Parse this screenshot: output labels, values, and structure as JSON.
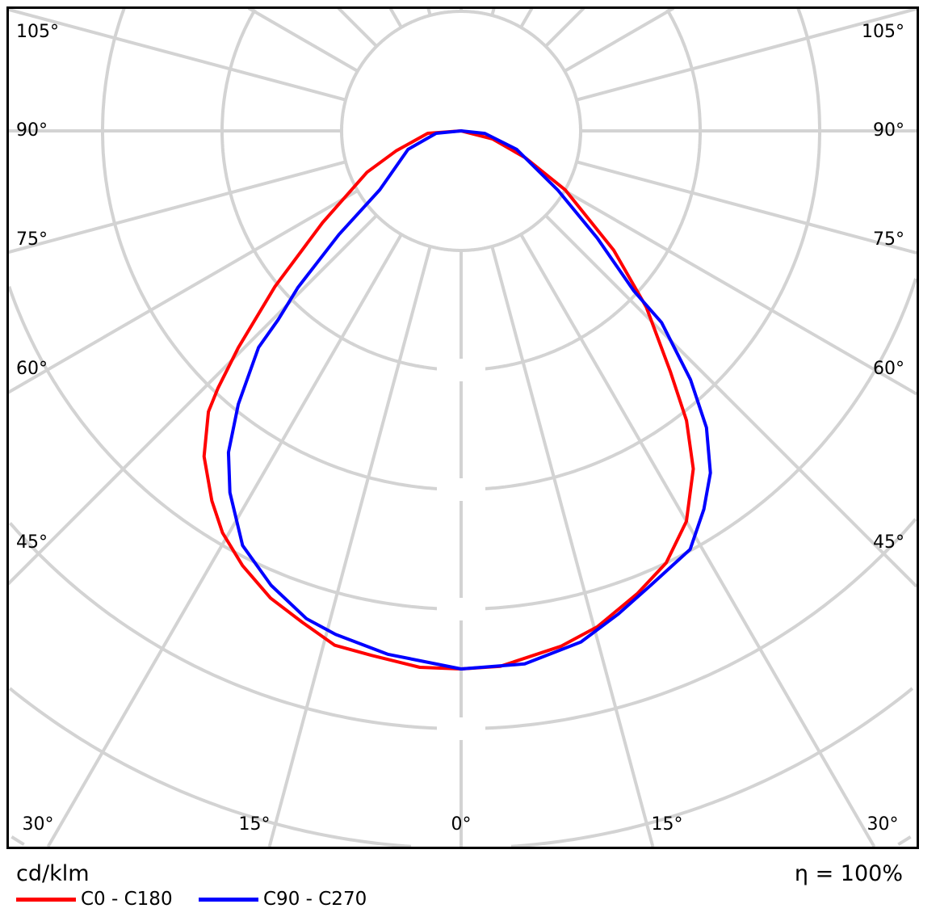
{
  "chart_data": {
    "type": "polar",
    "unit_label": "cd/klm",
    "efficiency_label": "η = 100%",
    "angle_labels_left": [
      "105°",
      "90°",
      "75°",
      "60°",
      "45°"
    ],
    "angle_labels_bottom": [
      "30°",
      "15°",
      "0°",
      "15°",
      "30°"
    ],
    "angle_labels_right": [
      "105°",
      "90°",
      "75°",
      "60°",
      "45°"
    ],
    "radial_tick_labels": [],
    "grid": true,
    "angular_grid_step_deg": 15,
    "legend_position": "bottom-left",
    "series": [
      {
        "name": "C0 - C180",
        "color": "#ff0000",
        "points": [
          [
            -90,
            0
          ],
          [
            -85.8,
            0.28
          ],
          [
            -72.9,
            0.57
          ],
          [
            -66.3,
            0.86
          ],
          [
            -56.5,
            1.39
          ],
          [
            -50.1,
            2.03
          ],
          [
            -45.8,
            2.6
          ],
          [
            -43.4,
            2.96
          ],
          [
            -42,
            3.16
          ],
          [
            -38.3,
            3.47
          ],
          [
            -34,
            3.73
          ],
          [
            -30.7,
            3.91
          ],
          [
            -26.7,
            4.07
          ],
          [
            -22.2,
            4.22
          ],
          [
            -17.9,
            4.32
          ],
          [
            -13.8,
            4.43
          ],
          [
            -9.7,
            4.45
          ],
          [
            -4.4,
            4.5
          ],
          [
            0,
            4.5
          ],
          [
            4.2,
            4.49
          ],
          [
            11,
            4.39
          ],
          [
            15.4,
            4.3
          ],
          [
            20.9,
            4.14
          ],
          [
            25.4,
            4.0
          ],
          [
            30,
            3.77
          ],
          [
            34.5,
            3.43
          ],
          [
            37.9,
            3.07
          ],
          [
            41,
            2.67
          ],
          [
            46.4,
            2.14
          ],
          [
            52,
            1.62
          ],
          [
            60.5,
            1.0
          ],
          [
            67.3,
            0.58
          ],
          [
            75.6,
            0.27
          ],
          [
            90,
            0
          ]
        ]
      },
      {
        "name": "C90 - C270",
        "color": "#0000ff",
        "points": [
          [
            -90,
            0
          ],
          [
            -84.5,
            0.21
          ],
          [
            -70.8,
            0.47
          ],
          [
            -54.1,
            0.84
          ],
          [
            -49.7,
            1.34
          ],
          [
            -46.2,
            1.89
          ],
          [
            -44.1,
            2.2
          ],
          [
            -43.1,
            2.48
          ],
          [
            -39.2,
            2.95
          ],
          [
            -35.9,
            3.32
          ],
          [
            -32.6,
            3.59
          ],
          [
            -27.8,
            3.92
          ],
          [
            -22.7,
            4.12
          ],
          [
            -17.6,
            4.28
          ],
          [
            -14,
            4.34
          ],
          [
            -8,
            4.42
          ],
          [
            0,
            4.5
          ],
          [
            6.8,
            4.49
          ],
          [
            13.2,
            4.39
          ],
          [
            18,
            4.25
          ],
          [
            22.6,
            4.12
          ],
          [
            28.7,
            3.99
          ],
          [
            32.7,
            3.76
          ],
          [
            36.1,
            3.54
          ],
          [
            39.6,
            3.22
          ],
          [
            42.7,
            2.83
          ],
          [
            46.3,
            2.32
          ],
          [
            47.2,
            1.97
          ],
          [
            51.8,
            1.45
          ],
          [
            58.5,
            0.95
          ],
          [
            71.6,
            0.49
          ],
          [
            84,
            0.2
          ],
          [
            90,
            0
          ]
        ]
      }
    ]
  }
}
